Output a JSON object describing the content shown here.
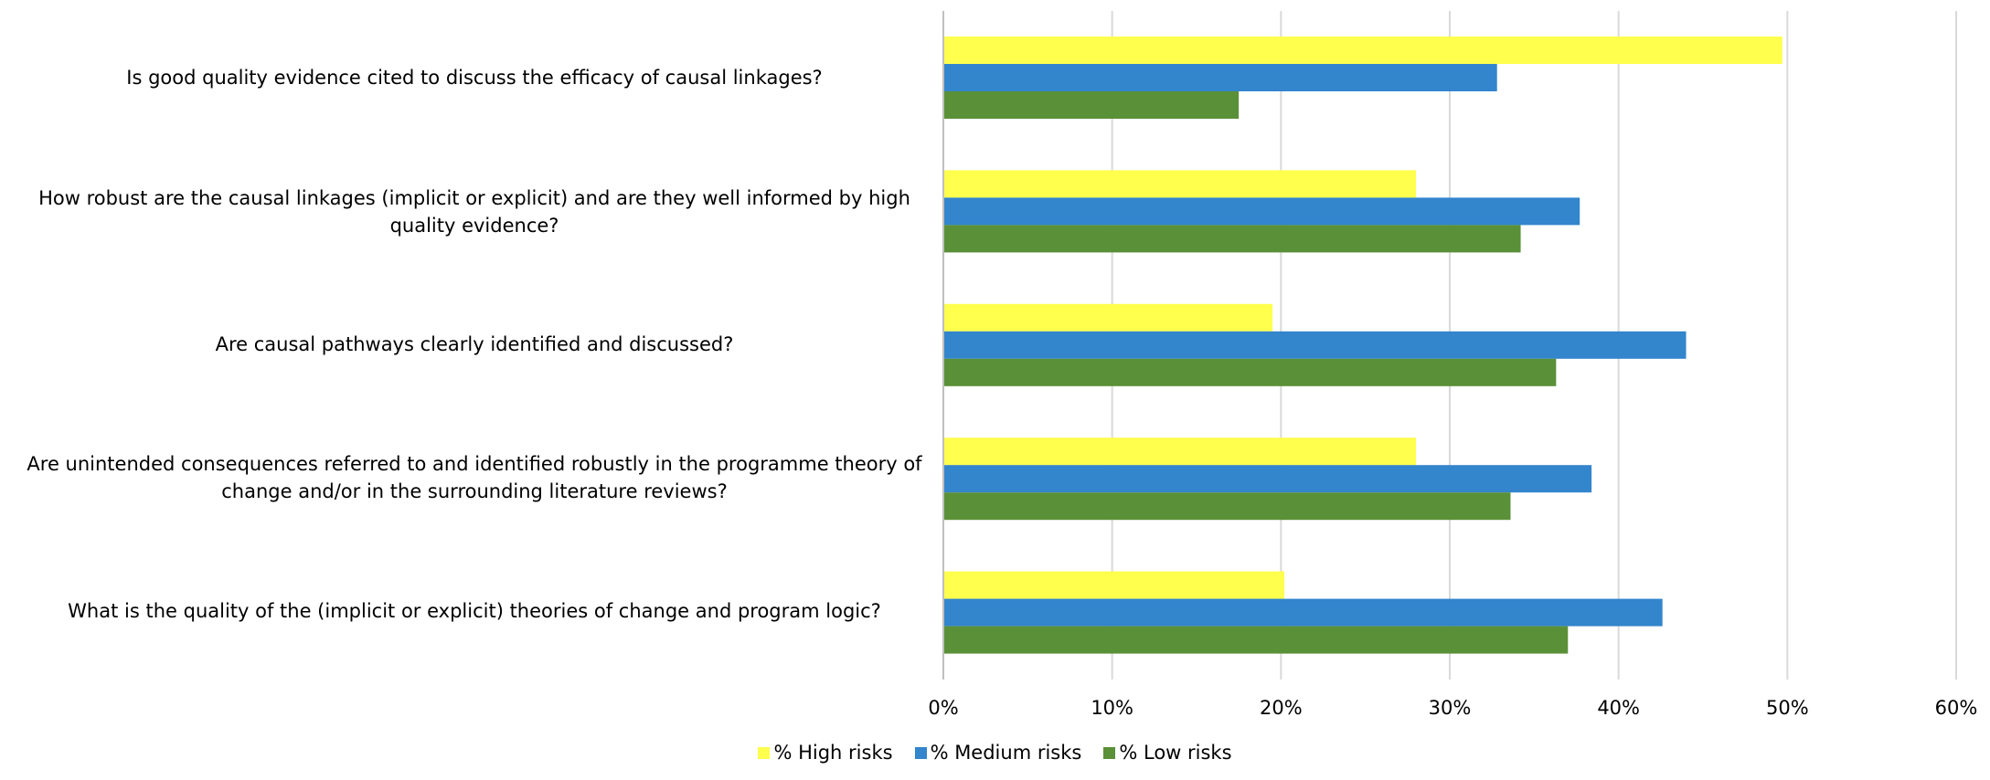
{
  "chart_data": {
    "type": "bar",
    "orientation": "horizontal",
    "categories": [
      "Is good quality evidence cited to discuss the efficacy of causal linkages?",
      "How robust are the causal linkages (implicit or explicit) and are they well informed by high quality evidence?",
      "Are causal pathways clearly identified and discussed?",
      "Are unintended consequences referred to and identified robustly in the programme theory of change and/or in the surrounding literature reviews?",
      "What is the quality of the (implicit or explicit) theories of change and program logic?"
    ],
    "series": [
      {
        "name": "% High risks",
        "color": "#FFFF4D",
        "values": [
          0.497,
          0.28,
          0.195,
          0.28,
          0.202
        ]
      },
      {
        "name": "% Medium risks",
        "color": "#3385CC",
        "values": [
          0.328,
          0.377,
          0.44,
          0.384,
          0.426
        ]
      },
      {
        "name": "% Low risks",
        "color": "#5A9038",
        "values": [
          0.175,
          0.342,
          0.363,
          0.336,
          0.37
        ]
      }
    ],
    "xlim": [
      0,
      0.6
    ],
    "x_ticks": [
      0,
      0.1,
      0.2,
      0.3,
      0.4,
      0.5,
      0.6
    ],
    "x_tick_labels": [
      "0%",
      "10%",
      "20%",
      "30%",
      "40%",
      "50%",
      "60%"
    ],
    "grid": true,
    "legend_position": "bottom",
    "title": "",
    "xlabel": "",
    "ylabel": ""
  }
}
